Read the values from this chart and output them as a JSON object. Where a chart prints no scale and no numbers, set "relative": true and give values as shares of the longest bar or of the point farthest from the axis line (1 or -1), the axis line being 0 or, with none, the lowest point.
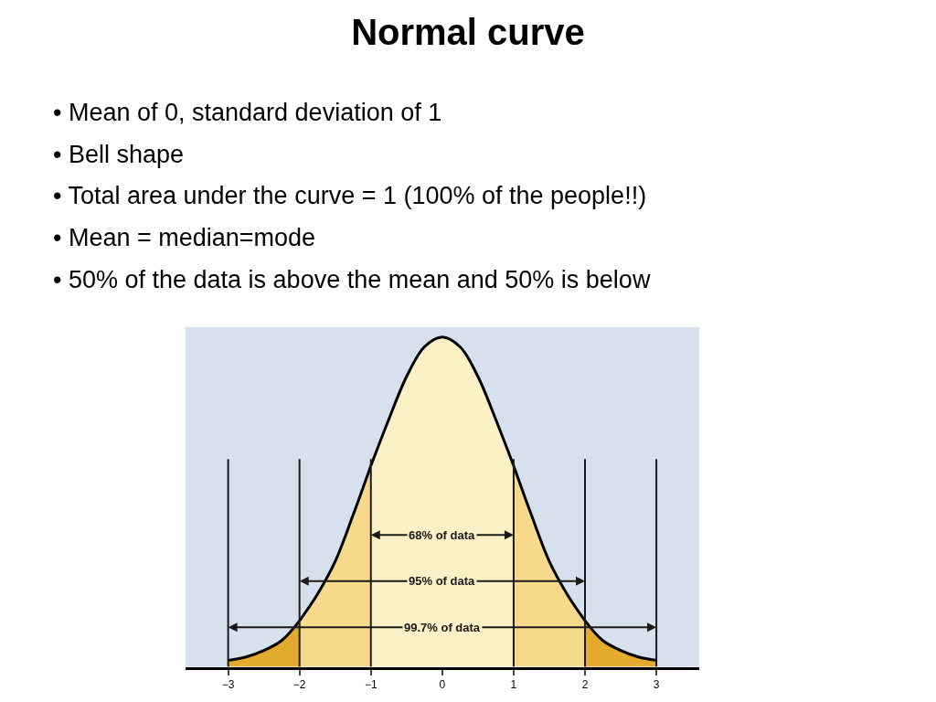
{
  "chart_data": {
    "type": "area",
    "title": "Normal curve",
    "annotations": [
      "• Mean of 0, standard deviation of 1",
      "• Bell shape",
      "• Total area under the curve = 1 (100% of the people!!)",
      "• Mean = median=mode",
      "• 50% of the data is above the mean and 50% is below",
      "68% of data",
      "95% of data",
      "99.7% of data"
    ],
    "series": [
      {
        "color": "#e3aa2e",
        "x": [
          -3,
          -2.75,
          -2.5,
          -2.25,
          -2
        ],
        "values": [
          0.02,
          0.03,
          0.05,
          0.08,
          0.14
        ]
      },
      {
        "color": "#f6d98a",
        "x": [
          -2,
          -1.75,
          -1.5,
          -1.25,
          -1
        ],
        "values": [
          0.14,
          0.22,
          0.32,
          0.46,
          0.61
        ]
      },
      {
        "color": "#fcf0c6",
        "x": [
          -1,
          -0.75,
          -0.5,
          -0.25,
          0,
          0.25,
          0.5,
          0.75,
          1
        ],
        "values": [
          0.61,
          0.75,
          0.88,
          0.97,
          1,
          0.97,
          0.88,
          0.75,
          0.61
        ]
      },
      {
        "color": "#f6d98a",
        "x": [
          1,
          1.25,
          1.5,
          1.75,
          2
        ],
        "values": [
          0.61,
          0.46,
          0.32,
          0.22,
          0.14
        ]
      },
      {
        "color": "#e3aa2e",
        "x": [
          2,
          2.25,
          2.5,
          2.75,
          3
        ],
        "values": [
          0.14,
          0.08,
          0.05,
          0.03,
          0.02
        ]
      }
    ],
    "relative": true,
    "xlim": [
      -3.6,
      3.6
    ],
    "xticks": [
      {
        "value": -3,
        "label": "−3"
      },
      {
        "value": -2,
        "label": "−2"
      },
      {
        "value": -1,
        "label": "−1"
      },
      0,
      1,
      2,
      3
    ],
    "ref_lines": [
      {
        "axis": "x",
        "value": -3
      },
      {
        "axis": "x",
        "value": -2
      },
      {
        "axis": "x",
        "value": -1
      },
      {
        "axis": "x",
        "value": 1
      },
      {
        "axis": "x",
        "value": 2
      },
      {
        "axis": "x",
        "value": 3
      }
    ],
    "grid": false
  }
}
